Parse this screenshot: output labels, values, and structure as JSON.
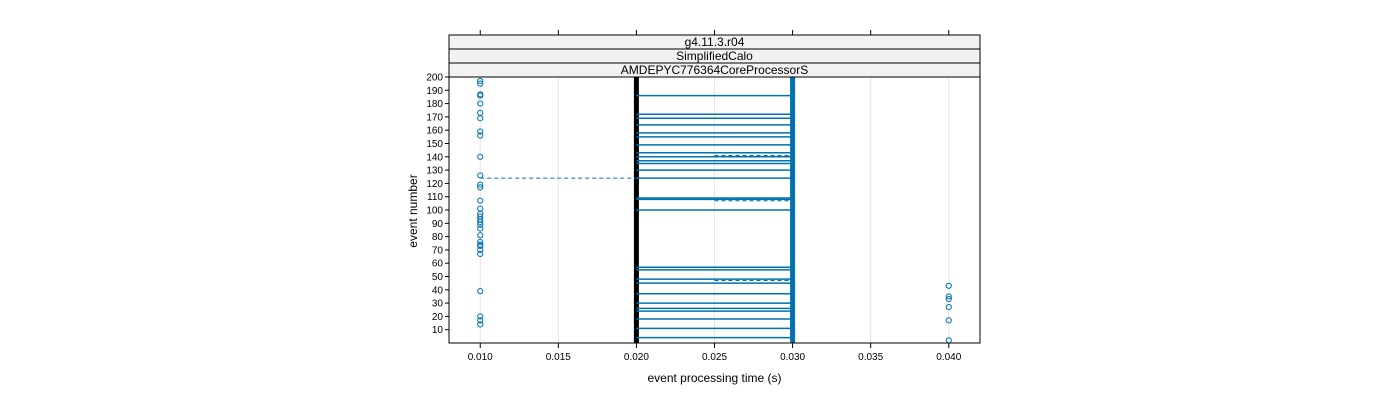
{
  "chart_data": {
    "type": "scatter",
    "title": "",
    "xlabel": "event processing time (s)",
    "ylabel": "event number",
    "strips": [
      "g4.11.3.r04",
      "SimplifiedCalo",
      "AMDEPYC776364CoreProcessorS"
    ],
    "xlim": [
      0.008,
      0.042
    ],
    "ylim": [
      0,
      200
    ],
    "x_ticks": [
      0.01,
      0.015,
      0.02,
      0.025,
      0.03,
      0.035,
      0.04
    ],
    "x_tick_labels": [
      "0.010",
      "0.015",
      "0.020",
      "0.025",
      "0.030",
      "0.035",
      "0.040"
    ],
    "y_ticks": [
      10,
      20,
      30,
      40,
      50,
      60,
      70,
      80,
      90,
      100,
      110,
      120,
      130,
      140,
      150,
      160,
      170,
      180,
      190,
      200
    ],
    "y_tick_labels": [
      "10",
      "20",
      "30",
      "40",
      "50",
      "60",
      "70",
      "80",
      "90",
      "100",
      "110",
      "120",
      "130",
      "140",
      "150",
      "160",
      "170",
      "180",
      "190",
      "200"
    ],
    "grid": true,
    "colors": {
      "points": "#0072b2",
      "segments": "#0072b2",
      "min_line": "#000000"
    },
    "vertical_lines": [
      {
        "x": 0.02,
        "color": "#000000"
      },
      {
        "x": 0.03,
        "color": "#0072b2"
      }
    ],
    "points": [
      {
        "x": 0.01,
        "y": 197
      },
      {
        "x": 0.01,
        "y": 195
      },
      {
        "x": 0.01,
        "y": 187
      },
      {
        "x": 0.01,
        "y": 186
      },
      {
        "x": 0.01,
        "y": 180
      },
      {
        "x": 0.01,
        "y": 173
      },
      {
        "x": 0.01,
        "y": 169
      },
      {
        "x": 0.01,
        "y": 159
      },
      {
        "x": 0.01,
        "y": 156
      },
      {
        "x": 0.01,
        "y": 140
      },
      {
        "x": 0.01,
        "y": 126
      },
      {
        "x": 0.01,
        "y": 119
      },
      {
        "x": 0.01,
        "y": 117
      },
      {
        "x": 0.01,
        "y": 107
      },
      {
        "x": 0.01,
        "y": 101
      },
      {
        "x": 0.01,
        "y": 97
      },
      {
        "x": 0.01,
        "y": 95
      },
      {
        "x": 0.01,
        "y": 93
      },
      {
        "x": 0.01,
        "y": 91
      },
      {
        "x": 0.01,
        "y": 89
      },
      {
        "x": 0.01,
        "y": 86
      },
      {
        "x": 0.01,
        "y": 81
      },
      {
        "x": 0.01,
        "y": 76
      },
      {
        "x": 0.01,
        "y": 74
      },
      {
        "x": 0.01,
        "y": 73
      },
      {
        "x": 0.01,
        "y": 70
      },
      {
        "x": 0.01,
        "y": 67
      },
      {
        "x": 0.01,
        "y": 39
      },
      {
        "x": 0.01,
        "y": 20
      },
      {
        "x": 0.01,
        "y": 17
      },
      {
        "x": 0.01,
        "y": 14
      },
      {
        "x": 0.04,
        "y": 43
      },
      {
        "x": 0.04,
        "y": 35
      },
      {
        "x": 0.04,
        "y": 33
      },
      {
        "x": 0.04,
        "y": 27
      },
      {
        "x": 0.04,
        "y": 17
      },
      {
        "x": 0.04,
        "y": 2
      }
    ],
    "segments": [
      {
        "x0": 0.02,
        "x1": 0.03,
        "y": 186,
        "style": "solid"
      },
      {
        "x0": 0.02,
        "x1": 0.03,
        "y": 172,
        "style": "solid"
      },
      {
        "x0": 0.025,
        "x1": 0.03,
        "y": 172,
        "style": "dashed"
      },
      {
        "x0": 0.02,
        "x1": 0.03,
        "y": 169,
        "style": "solid"
      },
      {
        "x0": 0.02,
        "x1": 0.03,
        "y": 164,
        "style": "solid"
      },
      {
        "x0": 0.02,
        "x1": 0.03,
        "y": 158,
        "style": "solid"
      },
      {
        "x0": 0.025,
        "x1": 0.03,
        "y": 158,
        "style": "dashed"
      },
      {
        "x0": 0.02,
        "x1": 0.03,
        "y": 155,
        "style": "solid"
      },
      {
        "x0": 0.02,
        "x1": 0.03,
        "y": 149,
        "style": "solid"
      },
      {
        "x0": 0.025,
        "x1": 0.03,
        "y": 149,
        "style": "dashed"
      },
      {
        "x0": 0.02,
        "x1": 0.03,
        "y": 143,
        "style": "solid"
      },
      {
        "x0": 0.025,
        "x1": 0.03,
        "y": 141,
        "style": "dashed"
      },
      {
        "x0": 0.02,
        "x1": 0.03,
        "y": 140,
        "style": "solid"
      },
      {
        "x0": 0.02,
        "x1": 0.03,
        "y": 137,
        "style": "solid"
      },
      {
        "x0": 0.02,
        "x1": 0.03,
        "y": 135,
        "style": "solid"
      },
      {
        "x0": 0.025,
        "x1": 0.03,
        "y": 135,
        "style": "dashed"
      },
      {
        "x0": 0.02,
        "x1": 0.03,
        "y": 130,
        "style": "solid"
      },
      {
        "x0": 0.01,
        "x1": 0.02,
        "y": 124,
        "style": "dashed"
      },
      {
        "x0": 0.02,
        "x1": 0.03,
        "y": 124,
        "style": "solid"
      },
      {
        "x0": 0.02,
        "x1": 0.03,
        "y": 109,
        "style": "solid"
      },
      {
        "x0": 0.025,
        "x1": 0.03,
        "y": 109,
        "style": "dashed"
      },
      {
        "x0": 0.02,
        "x1": 0.03,
        "y": 108,
        "style": "solid"
      },
      {
        "x0": 0.025,
        "x1": 0.03,
        "y": 107,
        "style": "dashed"
      },
      {
        "x0": 0.02,
        "x1": 0.03,
        "y": 100,
        "style": "solid"
      },
      {
        "x0": 0.02,
        "x1": 0.03,
        "y": 57,
        "style": "solid"
      },
      {
        "x0": 0.025,
        "x1": 0.03,
        "y": 57,
        "style": "dashed"
      },
      {
        "x0": 0.02,
        "x1": 0.03,
        "y": 55,
        "style": "solid"
      },
      {
        "x0": 0.02,
        "x1": 0.03,
        "y": 48,
        "style": "solid"
      },
      {
        "x0": 0.025,
        "x1": 0.03,
        "y": 47,
        "style": "dashed"
      },
      {
        "x0": 0.02,
        "x1": 0.03,
        "y": 45,
        "style": "solid"
      },
      {
        "x0": 0.02,
        "x1": 0.03,
        "y": 37,
        "style": "solid"
      },
      {
        "x0": 0.02,
        "x1": 0.03,
        "y": 30,
        "style": "solid"
      },
      {
        "x0": 0.025,
        "x1": 0.03,
        "y": 30,
        "style": "dashed"
      },
      {
        "x0": 0.02,
        "x1": 0.03,
        "y": 26,
        "style": "solid"
      },
      {
        "x0": 0.02,
        "x1": 0.03,
        "y": 24,
        "style": "solid"
      },
      {
        "x0": 0.02,
        "x1": 0.03,
        "y": 18,
        "style": "solid"
      },
      {
        "x0": 0.025,
        "x1": 0.03,
        "y": 18,
        "style": "dashed"
      },
      {
        "x0": 0.02,
        "x1": 0.03,
        "y": 11,
        "style": "solid"
      },
      {
        "x0": 0.02,
        "x1": 0.03,
        "y": 4,
        "style": "solid"
      }
    ]
  }
}
